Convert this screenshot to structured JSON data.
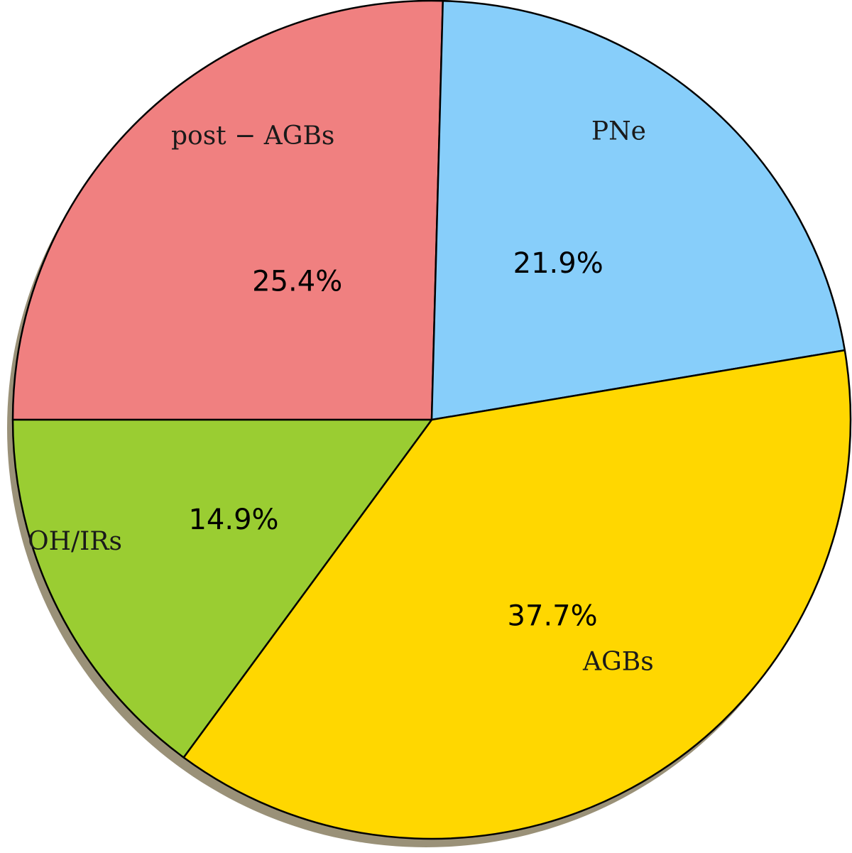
{
  "chart_data": {
    "type": "pie",
    "title": "",
    "shadow": true,
    "slices": [
      {
        "label": "post − AGBs",
        "value": 25.4,
        "value_label": "25.4%",
        "color": "#f08080"
      },
      {
        "label": "PNe",
        "value": 21.9,
        "value_label": "21.9%",
        "color": "#87cefa"
      },
      {
        "label": "AGBs",
        "value": 37.7,
        "value_label": "37.7%",
        "color": "#ffd700"
      },
      {
        "label": "OH/IRs",
        "value": 14.9,
        "value_label": "14.9%",
        "color": "#9acd32"
      }
    ]
  }
}
